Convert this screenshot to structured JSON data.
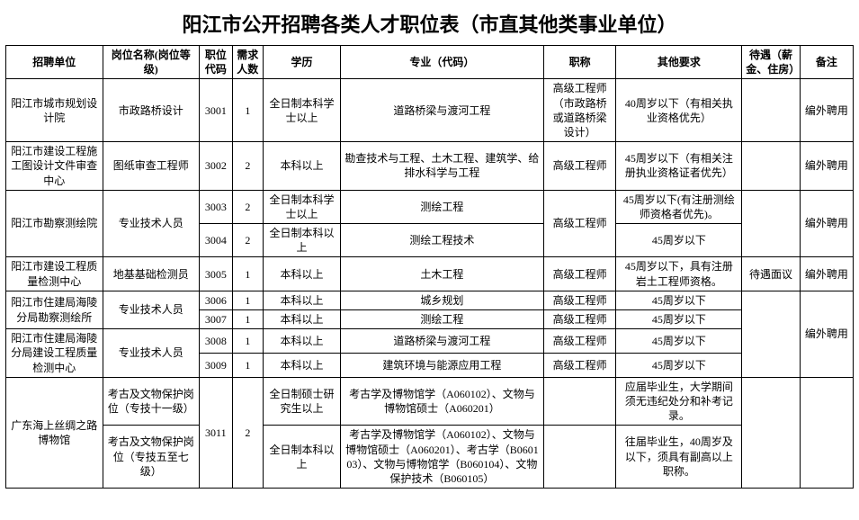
{
  "title": "阳江市公开招聘各类人才职位表（市直其他类事业单位）",
  "headers": {
    "unit": "招聘单位",
    "post": "岗位名称(岗位等级)",
    "code": "职位代码",
    "num": "需求人数",
    "edu": "学历",
    "major": "专业（代码）",
    "jobtitle": "职称",
    "other": "其他要求",
    "salary": "待遇（薪金、住房）",
    "remark": "备注"
  },
  "rows": [
    {
      "unit": "阳江市城市规划设计院",
      "post": "市政路桥设计",
      "code": "3001",
      "num": "1",
      "edu": "全日制本科学士以上",
      "major": "道路桥梁与渡河工程",
      "jobtitle": "高级工程师（市政路桥或道路桥梁设计）",
      "other": "40周岁以下（有相关执业资格优先）",
      "salary": "",
      "remark": "编外聘用"
    },
    {
      "unit": "阳江市建设工程施工图设计文件审查中心",
      "post": "图纸审查工程师",
      "code": "3002",
      "num": "2",
      "edu": "本科以上",
      "major": "勘查技术与工程、土木工程、建筑学、给排水科学与工程",
      "jobtitle": "高级工程师",
      "other": "45周岁以下（有相关注册执业资格证者优先）",
      "salary": "",
      "remark": "编外聘用"
    },
    {
      "unit": "阳江市勘察测绘院",
      "post": "专业技术人员",
      "code": "3003",
      "num": "2",
      "edu": "全日制本科学士以上",
      "major": "测绘工程",
      "jobtitle": "高级工程师",
      "other": "45周岁以下(有注册测绘师资格者优先)。",
      "remark": "编外聘用"
    },
    {
      "code": "3004",
      "num": "2",
      "edu": "全日制本科以上",
      "major": "测绘工程技术",
      "other": "45周岁以下"
    },
    {
      "unit": "阳江市建设工程质量检测中心",
      "post": "地基基础检测员",
      "code": "3005",
      "num": "1",
      "edu": "本科以上",
      "major": "土木工程",
      "jobtitle": "高级工程师",
      "other": "45周岁以下，具有注册岩土工程师资格。",
      "salary": "待遇面议",
      "remark": "编外聘用"
    },
    {
      "unit": "阳江市住建局海陵分局勘察测绘所",
      "post": "专业技术人员",
      "code": "3006",
      "num": "1",
      "edu": "本科以上",
      "major": "城乡规划",
      "jobtitle": "高级工程师",
      "other": "45周岁以下",
      "remark": "编外聘用"
    },
    {
      "code": "3007",
      "num": "1",
      "edu": "本科以上",
      "major": "测绘工程",
      "jobtitle": "高级工程师",
      "other": "45周岁以下"
    },
    {
      "unit": "阳江市住建局海陵分局建设工程质量检测中心",
      "post": "专业技术人员",
      "code": "3008",
      "num": "1",
      "edu": "本科以上",
      "major": "道路桥梁与渡河工程",
      "jobtitle": "高级工程师",
      "other": "45周岁以下"
    },
    {
      "code": "3009",
      "num": "1",
      "edu": "本科以上",
      "major": "建筑环境与能源应用工程",
      "jobtitle": "高级工程师",
      "other": "45周岁以下"
    },
    {
      "unit": "广东海上丝绸之路博物馆",
      "post": "考古及文物保护岗位（专技十一级）",
      "code": "3011",
      "num": "2",
      "edu": "全日制硕士研究生以上",
      "major": "考古学及博物馆学（A060102）、文物与博物馆硕士（A060201）",
      "other": "应届毕业生，大学期间须无违纪处分和补考记录。"
    },
    {
      "post": "考古及文物保护岗位（专技五至七级）",
      "edu": "全日制本科以上",
      "major": "考古学及博物馆学（A060102）、文物与博物馆硕士（A060201）、考古学（B060103）、文物与博物馆学（B060104）、文物保护技术（B060105）",
      "other": "往届毕业生，40周岁及以下，须具有副高以上职称。"
    }
  ]
}
